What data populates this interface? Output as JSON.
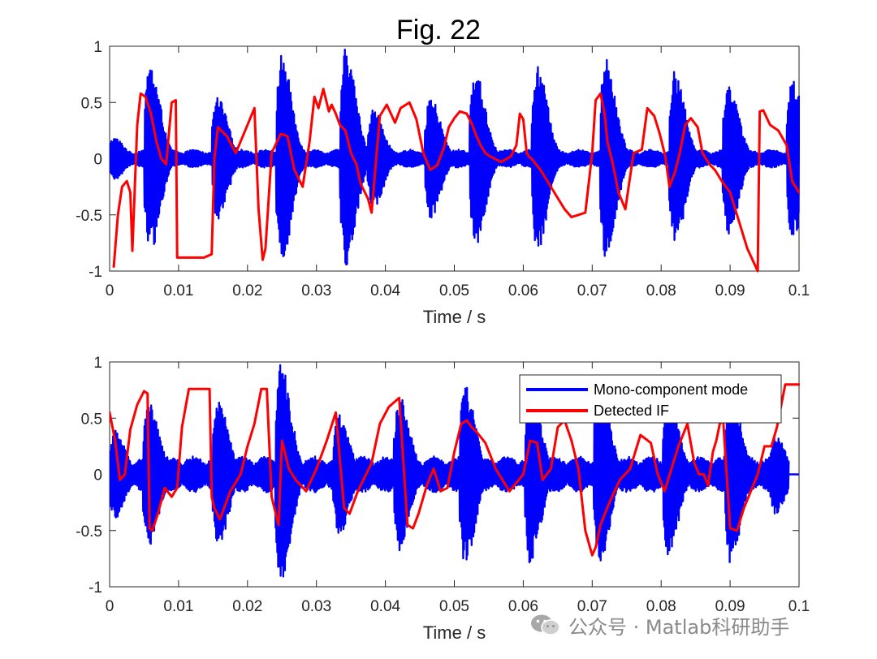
{
  "figure_title": "Fig. 22",
  "colors": {
    "mode": "#0000ff",
    "if": "#ff0000",
    "axis": "#262626"
  },
  "watermark": {
    "icon": "wechat-icon",
    "text": "公众号 · Matlab科研助手"
  },
  "chart_data": [
    {
      "type": "line",
      "title": "Fig. 22",
      "xlabel": "Time / s",
      "ylabel": "",
      "xlim": [
        0,
        0.1
      ],
      "ylim": [
        -1,
        1
      ],
      "xticks": [
        0,
        0.01,
        0.02,
        0.03,
        0.04,
        0.05,
        0.06,
        0.07,
        0.08,
        0.09,
        0.1
      ],
      "xtick_labels": [
        "0",
        "0.01",
        "0.02",
        "0.03",
        "0.04",
        "0.05",
        "0.06",
        "0.07",
        "0.08",
        "0.09",
        "0.1"
      ],
      "yticks": [
        -1,
        -0.5,
        0,
        0.5,
        1
      ],
      "ytick_labels": [
        "-1",
        "-0.5",
        "0",
        "0.5",
        "1"
      ],
      "legend": null,
      "series": [
        {
          "name": "Mono-component mode",
          "color": "#0000ff",
          "kind": "oscillation_envelope",
          "baseline": 0.08,
          "bursts": [
            {
              "t": 0.0006,
              "amp": 0.19
            },
            {
              "t": 0.0058,
              "amp": 0.85
            },
            {
              "t": 0.0156,
              "amp": 0.55
            },
            {
              "t": 0.0249,
              "amp": 0.92
            },
            {
              "t": 0.0342,
              "amp": 0.98
            },
            {
              "t": 0.0382,
              "amp": 0.45
            },
            {
              "t": 0.0465,
              "amp": 0.55
            },
            {
              "t": 0.053,
              "amp": 0.78
            },
            {
              "t": 0.062,
              "amp": 0.82
            },
            {
              "t": 0.0719,
              "amp": 0.92
            },
            {
              "t": 0.0819,
              "amp": 0.78
            },
            {
              "t": 0.0897,
              "amp": 0.68
            },
            {
              "t": 0.099,
              "amp": 0.72
            }
          ],
          "burst_width": 0.0022,
          "end": 0.1
        },
        {
          "name": "Detected IF",
          "color": "#ff0000",
          "kind": "line",
          "x": [
            0.0006,
            0.0012,
            0.0018,
            0.0025,
            0.003,
            0.0033,
            0.004,
            0.0045,
            0.0052,
            0.006,
            0.0068,
            0.0075,
            0.0082,
            0.009,
            0.0096,
            0.0098,
            0.0113,
            0.0137,
            0.0148,
            0.0152,
            0.0157,
            0.017,
            0.0183,
            0.02,
            0.021,
            0.0216,
            0.0222,
            0.0226,
            0.0235,
            0.0248,
            0.0258,
            0.0268,
            0.028,
            0.029,
            0.0297,
            0.0303,
            0.031,
            0.0318,
            0.0322,
            0.0328,
            0.0334,
            0.0342,
            0.035,
            0.0358,
            0.0364,
            0.0375,
            0.038,
            0.0392,
            0.0402,
            0.0414,
            0.0422,
            0.0435,
            0.0445,
            0.0455,
            0.0465,
            0.0475,
            0.0485,
            0.0492,
            0.05,
            0.0508,
            0.0518,
            0.0526,
            0.0532,
            0.0538,
            0.0545,
            0.0552,
            0.0568,
            0.0582,
            0.059,
            0.0595,
            0.06,
            0.0605,
            0.0608,
            0.0612,
            0.0625,
            0.0645,
            0.066,
            0.067,
            0.068,
            0.069,
            0.07,
            0.0705,
            0.0712,
            0.0718,
            0.0722,
            0.073,
            0.0738,
            0.0748,
            0.076,
            0.0772,
            0.078,
            0.079,
            0.0798,
            0.0806,
            0.0812,
            0.082,
            0.0827,
            0.0835,
            0.0843,
            0.0848,
            0.0853,
            0.086,
            0.087,
            0.0878,
            0.0888,
            0.09,
            0.091,
            0.0925,
            0.094,
            0.0943,
            0.0948,
            0.0958,
            0.097,
            0.0982,
            0.099,
            0.1
          ],
          "y": [
            -0.96,
            -0.5,
            -0.25,
            -0.2,
            -0.3,
            -0.82,
            0.3,
            0.58,
            0.55,
            0.4,
            0.15,
            0.0,
            -0.05,
            0.5,
            0.52,
            -0.88,
            -0.88,
            -0.88,
            -0.85,
            0.0,
            0.28,
            0.2,
            0.05,
            0.3,
            0.45,
            -0.45,
            -0.9,
            -0.8,
            0.05,
            0.22,
            0.2,
            -0.1,
            -0.25,
            0.15,
            0.55,
            0.45,
            0.62,
            0.42,
            0.48,
            0.4,
            0.3,
            0.25,
            0.05,
            -0.05,
            -0.22,
            -0.36,
            -0.48,
            0.38,
            0.48,
            0.32,
            0.45,
            0.5,
            0.35,
            0.05,
            -0.1,
            -0.06,
            0.1,
            0.28,
            0.36,
            0.42,
            0.4,
            0.3,
            0.2,
            0.12,
            0.05,
            0.02,
            -0.03,
            0.02,
            0.12,
            0.4,
            0.35,
            0.05,
            0.02,
            0.0,
            -0.1,
            -0.3,
            -0.45,
            -0.52,
            -0.5,
            -0.48,
            0.05,
            0.52,
            0.58,
            0.4,
            0.15,
            -0.05,
            -0.3,
            -0.45,
            0.05,
            0.08,
            0.45,
            0.38,
            0.22,
            0.02,
            -0.25,
            -0.12,
            0.05,
            0.3,
            0.36,
            0.32,
            0.28,
            0.05,
            -0.05,
            -0.1,
            -0.2,
            -0.3,
            -0.5,
            -0.8,
            -1.0,
            0.42,
            0.43,
            0.3,
            0.25,
            0.12,
            -0.2,
            -0.3
          ]
        }
      ]
    },
    {
      "type": "line",
      "title": "",
      "xlabel": "Time / s",
      "ylabel": "",
      "xlim": [
        0,
        0.1
      ],
      "ylim": [
        -1,
        1
      ],
      "xticks": [
        0,
        0.01,
        0.02,
        0.03,
        0.04,
        0.05,
        0.06,
        0.07,
        0.08,
        0.09,
        0.1
      ],
      "xtick_labels": [
        "0",
        "0.01",
        "0.02",
        "0.03",
        "0.04",
        "0.05",
        "0.06",
        "0.07",
        "0.08",
        "0.09",
        "0.1"
      ],
      "yticks": [
        -1,
        -0.5,
        0,
        0.5,
        1
      ],
      "ytick_labels": [
        "-1",
        "-0.5",
        "0",
        "0.5",
        "1"
      ],
      "legend": {
        "position": "top-right",
        "entries": [
          "Mono-component mode",
          "Detected IF"
        ]
      },
      "series": [
        {
          "name": "Mono-component mode",
          "color": "#0000ff",
          "kind": "oscillation_envelope",
          "baseline": 0.16,
          "bursts": [
            {
              "t": 0.0007,
              "amp": 0.4
            },
            {
              "t": 0.0056,
              "amp": 0.65
            },
            {
              "t": 0.0157,
              "amp": 0.65
            },
            {
              "t": 0.0248,
              "amp": 0.98
            },
            {
              "t": 0.0332,
              "amp": 0.55
            },
            {
              "t": 0.042,
              "amp": 0.7
            },
            {
              "t": 0.0515,
              "amp": 0.8
            },
            {
              "t": 0.061,
              "amp": 0.8
            },
            {
              "t": 0.071,
              "amp": 0.82
            },
            {
              "t": 0.081,
              "amp": 0.72
            },
            {
              "t": 0.09,
              "amp": 0.8
            },
            {
              "t": 0.0965,
              "amp": 0.35
            }
          ],
          "burst_width": 0.0022,
          "end": 0.0985,
          "tail_value": 0.0
        },
        {
          "name": "Detected IF",
          "color": "#ff0000",
          "kind": "line",
          "x": [
            0.0,
            0.0008,
            0.0015,
            0.0022,
            0.003,
            0.004,
            0.005,
            0.0055,
            0.0058,
            0.0062,
            0.007,
            0.008,
            0.009,
            0.0098,
            0.0105,
            0.0115,
            0.013,
            0.0145,
            0.0148,
            0.0152,
            0.016,
            0.0175,
            0.019,
            0.02,
            0.021,
            0.022,
            0.0228,
            0.0235,
            0.0245,
            0.025,
            0.026,
            0.027,
            0.0285,
            0.03,
            0.0315,
            0.0328,
            0.034,
            0.0348,
            0.036,
            0.038,
            0.0392,
            0.0405,
            0.042,
            0.0432,
            0.044,
            0.0448,
            0.046,
            0.047,
            0.048,
            0.049,
            0.05,
            0.051,
            0.0518,
            0.0525,
            0.0532,
            0.0545,
            0.056,
            0.058,
            0.06,
            0.061,
            0.062,
            0.0628,
            0.064,
            0.065,
            0.066,
            0.067,
            0.068,
            0.069,
            0.07,
            0.0705,
            0.0712,
            0.0725,
            0.074,
            0.0755,
            0.077,
            0.0785,
            0.0795,
            0.0805,
            0.0815,
            0.0825,
            0.0838,
            0.0848,
            0.0855,
            0.0862,
            0.0868,
            0.0875,
            0.088,
            0.0885,
            0.089,
            0.09,
            0.091,
            0.092,
            0.093,
            0.094,
            0.095,
            0.096,
            0.0968,
            0.098,
            0.099,
            0.1
          ],
          "y": [
            0.55,
            0.3,
            -0.05,
            0.0,
            0.4,
            0.62,
            0.74,
            0.72,
            -0.48,
            -0.5,
            -0.35,
            -0.12,
            -0.2,
            -0.12,
            0.42,
            0.76,
            0.76,
            0.76,
            -0.2,
            -0.3,
            -0.4,
            -0.15,
            0.0,
            0.25,
            0.45,
            0.76,
            0.76,
            -0.2,
            -0.45,
            0.3,
            0.05,
            -0.05,
            -0.15,
            0.05,
            0.3,
            0.55,
            -0.3,
            -0.35,
            -0.15,
            0.1,
            0.45,
            0.6,
            0.68,
            -0.45,
            -0.48,
            -0.35,
            -0.1,
            0.05,
            -0.15,
            -0.12,
            0.2,
            0.45,
            0.48,
            0.42,
            0.38,
            0.28,
            0.05,
            -0.15,
            0.0,
            0.3,
            0.28,
            -0.05,
            0.05,
            0.42,
            0.48,
            0.3,
            0.05,
            -0.5,
            -0.72,
            -0.65,
            -0.45,
            -0.25,
            -0.05,
            0.05,
            0.35,
            0.28,
            0.0,
            -0.15,
            0.05,
            0.25,
            0.45,
            0.1,
            0.0,
            0.0,
            -0.1,
            0.2,
            0.3,
            0.45,
            0.48,
            -0.48,
            -0.5,
            -0.3,
            -0.15,
            0.0,
            0.25,
            0.25,
            0.42,
            0.8,
            0.8,
            0.8
          ]
        }
      ]
    }
  ]
}
